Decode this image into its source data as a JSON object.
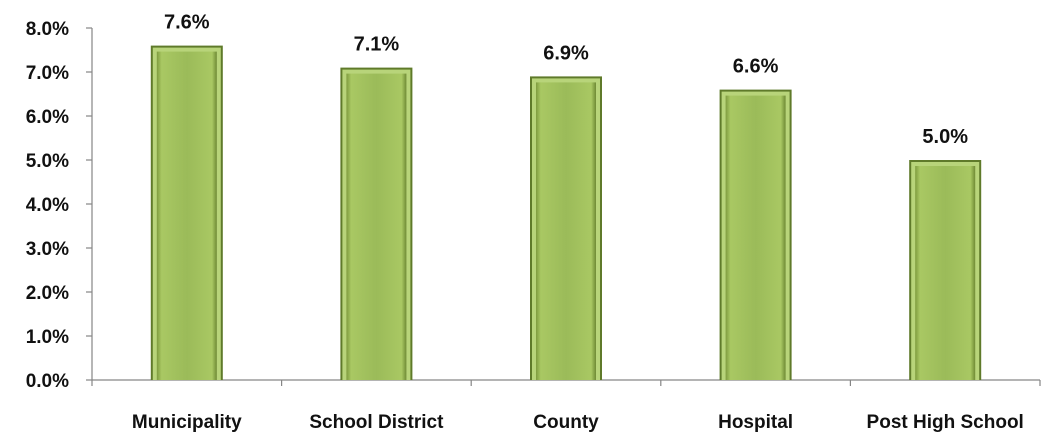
{
  "chart_data": {
    "type": "bar",
    "categories": [
      "Municipality",
      "School District",
      "County",
      "Hospital",
      "Post High School"
    ],
    "values": [
      7.6,
      7.1,
      6.9,
      6.6,
      5.0
    ],
    "data_labels": [
      "7.6%",
      "7.1%",
      "6.9%",
      "6.6%",
      "5.0%"
    ],
    "ylim": [
      0,
      8
    ],
    "y_ticks": [
      0,
      1,
      2,
      3,
      4,
      5,
      6,
      7,
      8
    ],
    "y_tick_labels": [
      "0.0%",
      "1.0%",
      "2.0%",
      "3.0%",
      "4.0%",
      "5.0%",
      "6.0%",
      "7.0%",
      "8.0%"
    ],
    "grid": false,
    "legend": "none",
    "colors": {
      "bar_fill": "#9bbb59",
      "bar_light": "#b8d47a",
      "bar_dark": "#5f7a2a",
      "axis": "#868686"
    }
  }
}
